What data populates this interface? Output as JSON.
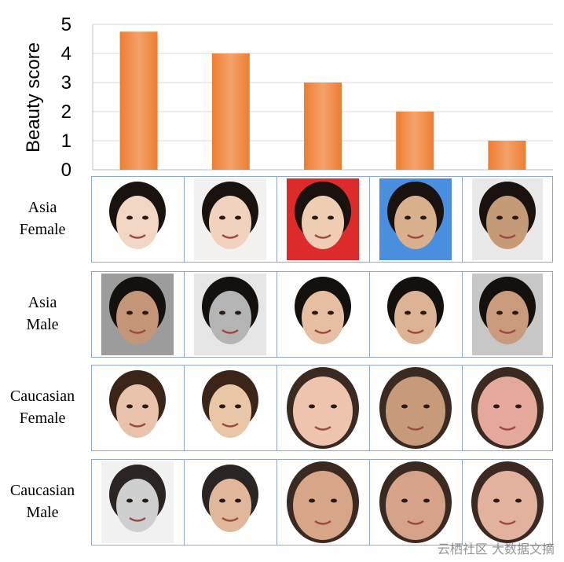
{
  "chart_data": {
    "type": "bar",
    "categories": [
      "",
      "",
      "",
      "",
      ""
    ],
    "values": [
      4.75,
      4.0,
      3.0,
      2.0,
      1.0
    ],
    "ylabel": "Beauty score",
    "xlabel": "",
    "ylim": [
      0,
      5
    ],
    "yticks": [
      "0",
      "1",
      "2",
      "3",
      "4",
      "5"
    ],
    "grid": true,
    "bar_color": "#ed7d31",
    "gradient_light": "#f4a26b"
  },
  "rows": [
    {
      "label_lines": [
        "Asia",
        "Female"
      ],
      "bg": [
        "#ffffff",
        "#f3f1ef",
        "#dd2b2b",
        "#4a8ee0",
        "#e8e8e8"
      ],
      "shape": [
        "rect",
        "rect",
        "rect",
        "rect",
        "rect"
      ],
      "skin": [
        "#f2d6c4",
        "#f0d2bf",
        "#efcdb3",
        "#d9b08c",
        "#c59a77"
      ],
      "hair": "#1a120e"
    },
    {
      "label_lines": [
        "Asia",
        "Male"
      ],
      "bg": [
        "#9c9c9c",
        "#e6e6e6",
        "#ffffff",
        "#ffffff",
        "#c7c7c7"
      ],
      "shape": [
        "rect",
        "rect",
        "rect",
        "rect",
        "rect"
      ],
      "skin": [
        "#c59577",
        "#b4b4b4",
        "#e6bea1",
        "#dcb394",
        "#c99a7c"
      ],
      "hair": "#14100d"
    },
    {
      "label_lines": [
        "Caucasian",
        "Female"
      ],
      "bg": [
        "#ffffff",
        "#ffffff",
        "#ffffff",
        "#ffffff",
        "#ffffff"
      ],
      "shape": [
        "rect",
        "rect",
        "oval",
        "oval",
        "oval"
      ],
      "skin": [
        "#e8c2aa",
        "#e9c6a6",
        "#efc4ae",
        "#c79a7a",
        "#e4a99a"
      ],
      "hair": "#3b2418"
    },
    {
      "label_lines": [
        "Caucasian",
        "Male"
      ],
      "bg": [
        "#f1f1f1",
        "#ffffff",
        "#ffffff",
        "#ffffff",
        "#ffffff"
      ],
      "shape": [
        "rect",
        "rect",
        "oval",
        "oval",
        "oval"
      ],
      "skin": [
        "#cfcfcf",
        "#e1b79b",
        "#d7a688",
        "#d6a38a",
        "#e3b29f"
      ],
      "hair": "#2a2422"
    }
  ],
  "watermark": "云栖社区 大数据文摘"
}
